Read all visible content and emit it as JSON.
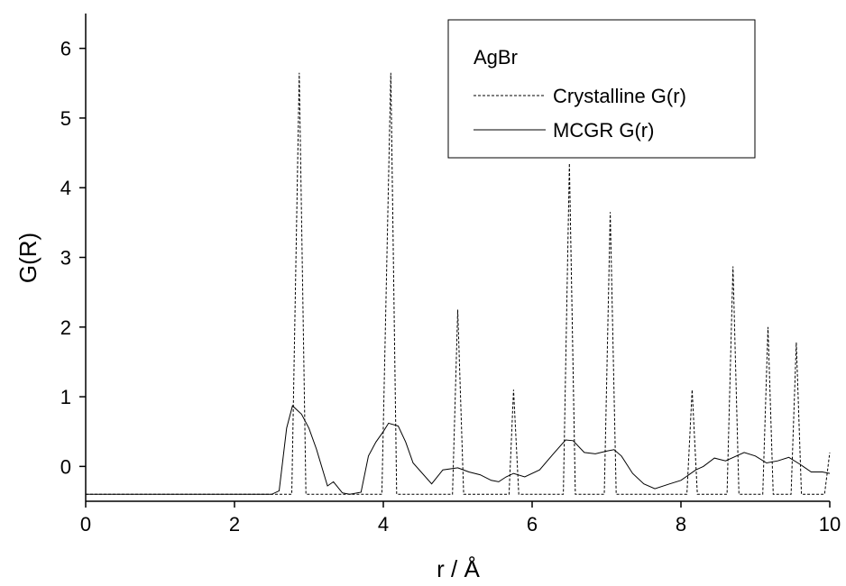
{
  "chart_data": {
    "type": "line",
    "xlabel": "r / Å",
    "ylabel": "G(R)",
    "legend_title": "AgBr",
    "legend": "upper right",
    "xlim": [
      0,
      10
    ],
    "ylim": [
      -0.5,
      6.5
    ],
    "xticks": [
      0,
      2,
      4,
      6,
      8,
      10
    ],
    "yticks": [
      0,
      1,
      2,
      3,
      4,
      5,
      6
    ],
    "series": [
      {
        "name": "Crystalline G(r)",
        "color": "#000000",
        "dash": true,
        "x": [
          0,
          2.77,
          2.87,
          2.96,
          3.98,
          4.1,
          4.18,
          4.93,
          5.0,
          5.08,
          5.69,
          5.75,
          5.82,
          6.42,
          6.5,
          6.58,
          6.97,
          7.05,
          7.13,
          8.08,
          8.15,
          8.22,
          8.62,
          8.7,
          8.78,
          9.1,
          9.17,
          9.24,
          9.48,
          9.55,
          9.62,
          9.93,
          10
        ],
        "values": [
          -0.4,
          -0.4,
          5.65,
          -0.4,
          -0.4,
          5.65,
          -0.4,
          -0.4,
          2.25,
          -0.4,
          -0.4,
          1.1,
          -0.4,
          -0.4,
          4.35,
          -0.4,
          -0.4,
          3.65,
          -0.4,
          -0.4,
          1.1,
          -0.4,
          -0.4,
          2.87,
          -0.4,
          -0.4,
          2.0,
          -0.4,
          -0.4,
          1.78,
          -0.4,
          -0.4,
          0.2
        ]
      },
      {
        "name": "MCGR G(r)",
        "color": "#000000",
        "dash": false,
        "x": [
          0,
          2.5,
          2.6,
          2.7,
          2.78,
          2.9,
          3.0,
          3.1,
          3.25,
          3.33,
          3.45,
          3.55,
          3.7,
          3.8,
          3.9,
          4.0,
          4.07,
          4.2,
          4.3,
          4.4,
          4.65,
          4.8,
          5.0,
          5.15,
          5.3,
          5.45,
          5.55,
          5.65,
          5.75,
          5.9,
          6.1,
          6.3,
          6.45,
          6.55,
          6.7,
          6.85,
          7.0,
          7.1,
          7.2,
          7.35,
          7.5,
          7.65,
          7.85,
          8.0,
          8.2,
          8.3,
          8.45,
          8.6,
          8.85,
          9.0,
          9.15,
          9.3,
          9.45,
          9.6,
          9.75,
          9.9,
          10
        ],
        "values": [
          -0.4,
          -0.4,
          -0.35,
          0.55,
          0.87,
          0.75,
          0.55,
          0.25,
          -0.28,
          -0.22,
          -0.38,
          -0.4,
          -0.37,
          0.15,
          0.35,
          0.5,
          0.62,
          0.58,
          0.35,
          0.05,
          -0.25,
          -0.05,
          -0.02,
          -0.08,
          -0.12,
          -0.2,
          -0.22,
          -0.15,
          -0.1,
          -0.15,
          -0.05,
          0.2,
          0.38,
          0.37,
          0.2,
          0.18,
          0.22,
          0.24,
          0.15,
          -0.1,
          -0.25,
          -0.32,
          -0.25,
          -0.2,
          -0.05,
          0.0,
          0.12,
          0.08,
          0.2,
          0.15,
          0.05,
          0.08,
          0.13,
          0.03,
          -0.08,
          -0.08,
          -0.1
        ]
      }
    ]
  }
}
